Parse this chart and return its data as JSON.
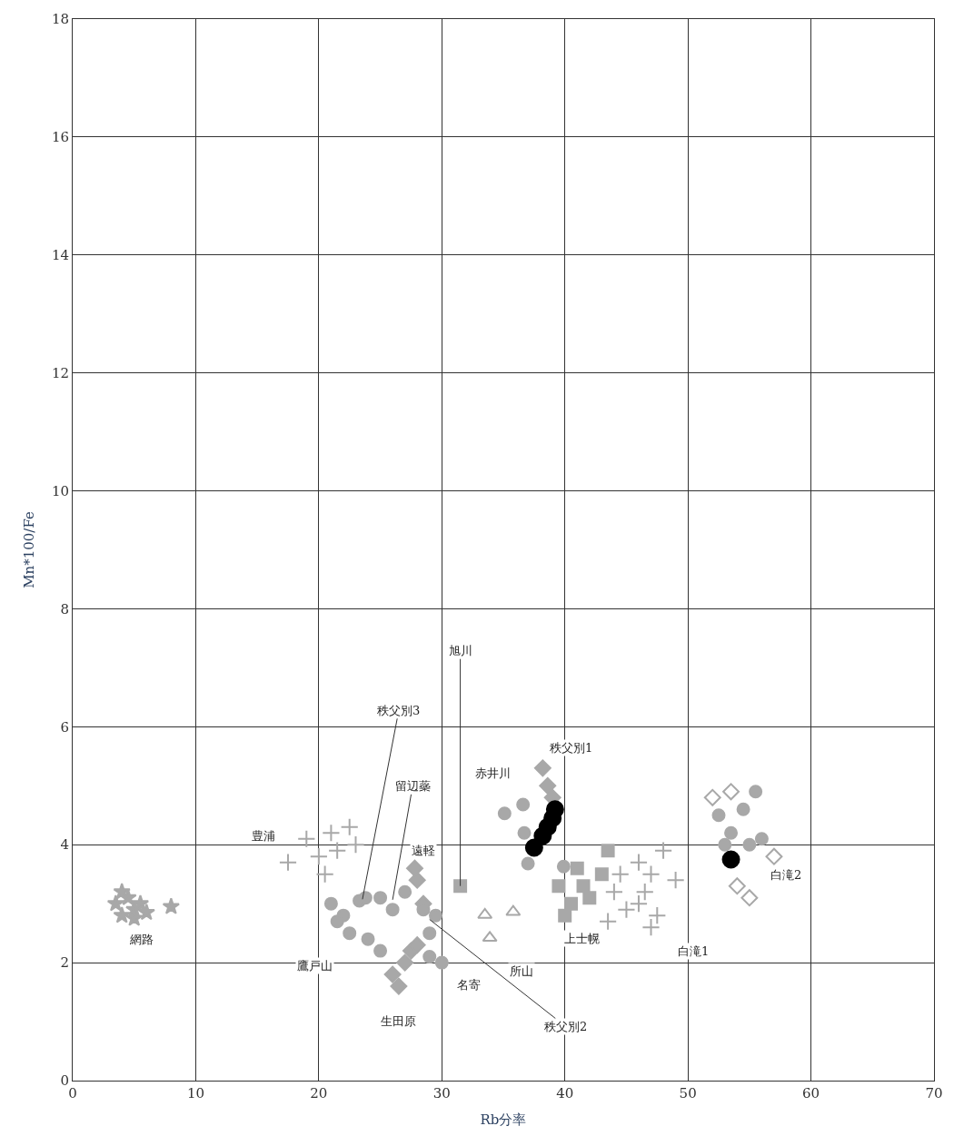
{
  "chart_data": {
    "type": "scatter",
    "xlabel": "Rb分率",
    "ylabel": "Mn*100/Fe",
    "xlim": [
      0,
      70
    ],
    "xticks": [
      0,
      10,
      20,
      30,
      40,
      50,
      60,
      70
    ],
    "ylim": [
      0,
      18
    ],
    "yticks": [
      0,
      2,
      4,
      6,
      8,
      10,
      12,
      14,
      16,
      18
    ],
    "grid": true,
    "legend": false,
    "series": [
      {
        "name": "網路",
        "color": "#a8a8a8",
        "marker": "star",
        "x": [
          3.5,
          4,
          4.5,
          5,
          5.5,
          6,
          4,
          5,
          8
        ],
        "values": [
          3.0,
          2.8,
          3.1,
          2.9,
          3.0,
          2.85,
          3.2,
          2.75,
          2.95
        ]
      },
      {
        "name": "豊浦",
        "color": "#a8a8a8",
        "marker": "cross",
        "x": [
          17.5,
          19,
          20,
          21,
          21.5,
          22.5,
          20.5,
          23
        ],
        "values": [
          3.7,
          4.1,
          3.8,
          4.2,
          3.9,
          4.3,
          3.5,
          4.0
        ]
      },
      {
        "name": "鷹戸山",
        "color": "#a8a8a8",
        "marker": "circle",
        "x": [
          21,
          22,
          22.5,
          23,
          24,
          21.5,
          25
        ],
        "values": [
          3.0,
          2.8,
          2.5,
          null,
          2.4,
          2.7,
          2.2
        ]
      },
      {
        "name": "秩父別3",
        "color": "#a8a8a8",
        "marker": "circle",
        "x": [
          23.3,
          23.8
        ],
        "values": [
          3.05,
          3.1
        ]
      },
      {
        "name": "留辺蘂",
        "color": "#a8a8a8",
        "marker": "circle",
        "x": [
          25,
          26,
          27
        ],
        "values": [
          3.1,
          2.9,
          3.2
        ]
      },
      {
        "name": "遠軽",
        "color": "#a8a8a8",
        "marker": "diamond",
        "x": [
          28,
          28.5,
          27.8
        ],
        "values": [
          3.4,
          3.0,
          3.6
        ]
      },
      {
        "name": "旭川",
        "color": "#a8a8a8",
        "marker": "square",
        "x": [
          31.5
        ],
        "values": [
          3.3
        ]
      },
      {
        "name": "秩父別2",
        "color": "#a8a8a8",
        "marker": "circle",
        "x": [
          28.5,
          29.5,
          29
        ],
        "values": [
          2.9,
          2.8,
          2.5
        ]
      },
      {
        "name": "生田原",
        "color": "#a8a8a8",
        "marker": "diamond",
        "x": [
          26,
          27,
          27.5,
          26.5,
          28
        ],
        "values": [
          1.8,
          2.0,
          2.2,
          1.6,
          2.3
        ]
      },
      {
        "name": "名寄",
        "color": "#a8a8a8",
        "marker": "circle",
        "x": [
          29,
          30
        ],
        "values": [
          2.1,
          2.0
        ]
      },
      {
        "name": "所山",
        "color": "#a8a8a8",
        "marker": "triangle",
        "x": [
          33.5,
          35.8,
          33.9
        ],
        "values": [
          2.81,
          2.86,
          2.42
        ]
      },
      {
        "name": "赤井川",
        "color": "#a8a8a8",
        "marker": "circle",
        "x": [
          35.1,
          36.6,
          36.7,
          37.0,
          39.9
        ],
        "values": [
          4.53,
          4.68,
          4.2,
          3.68,
          3.63
        ]
      },
      {
        "name": "秩父別1",
        "color": "#a8a8a8",
        "marker": "diamond",
        "x": [
          38.2,
          38.6,
          39.0
        ],
        "values": [
          5.3,
          5.0,
          4.8
        ]
      },
      {
        "name": "上士幌",
        "color": "#a8a8a8",
        "marker": "square",
        "x": [
          39.5,
          40.5,
          41,
          42,
          43,
          40,
          43.5,
          41.5
        ],
        "values": [
          3.3,
          3.0,
          3.6,
          3.1,
          3.5,
          2.8,
          3.9,
          3.3
        ]
      },
      {
        "name": "白滝1",
        "color": "#a8a8a8",
        "marker": "cross",
        "x": [
          44,
          44.5,
          45,
          46,
          46.5,
          47,
          47.5,
          48,
          49,
          43.5,
          46,
          47
        ],
        "values": [
          3.2,
          3.5,
          2.9,
          3.7,
          3.2,
          3.5,
          2.8,
          3.9,
          3.4,
          2.7,
          3.0,
          2.6
        ]
      },
      {
        "name": "白滝2",
        "color": "#a8a8a8",
        "marker": "circle",
        "x": [
          52.5,
          53.5,
          54.5,
          55,
          56,
          55.5,
          53
        ],
        "values": [
          4.5,
          4.2,
          4.6,
          4.0,
          4.1,
          4.9,
          4.0
        ]
      },
      {
        "color": "#a8a8a8",
        "marker": "diamond-open",
        "x": [
          52,
          54,
          55,
          57,
          53.5
        ],
        "values": [
          4.8,
          3.3,
          3.1,
          3.8,
          4.9
        ]
      },
      {
        "color": "#000000",
        "marker": "circle",
        "x": [
          37.5,
          38.2,
          38.6,
          39.0,
          39.2,
          53.5
        ],
        "values": [
          3.95,
          4.15,
          4.3,
          4.45,
          4.6,
          3.75
        ]
      }
    ]
  }
}
